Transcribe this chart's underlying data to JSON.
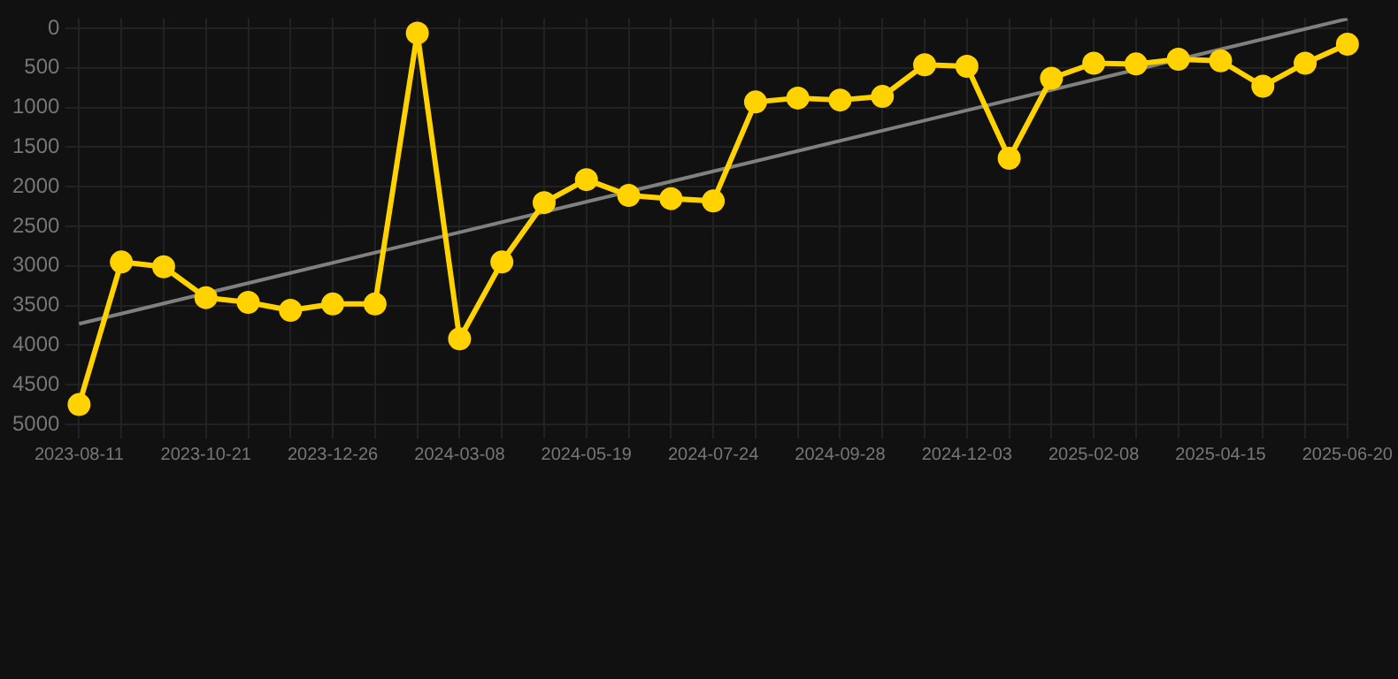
{
  "chart_data": {
    "type": "line",
    "categories": [
      "2023-08-11",
      null,
      null,
      "2023-10-21",
      null,
      null,
      "2023-12-26",
      null,
      null,
      "2024-03-08",
      null,
      null,
      "2024-05-19",
      null,
      null,
      "2024-07-24",
      null,
      null,
      "2024-09-28",
      null,
      null,
      "2024-12-03",
      null,
      null,
      "2025-02-08",
      null,
      null,
      "2025-04-15",
      null,
      null,
      "2025-06-20"
    ],
    "series": [
      {
        "color": "#ffd200",
        "marker": "circle",
        "values": [
          4750,
          2950,
          3010,
          3400,
          3460,
          3560,
          3480,
          3480,
          60,
          3920,
          2950,
          2200,
          1910,
          2110,
          2150,
          2180,
          930,
          880,
          905,
          860,
          460,
          480,
          1640,
          630,
          440,
          450,
          390,
          410,
          730,
          440,
          200
        ]
      },
      {
        "type": "line",
        "color": "#808080",
        "marker": "none",
        "values": [
          3730,
          null,
          null,
          null,
          null,
          null,
          null,
          null,
          null,
          null,
          null,
          null,
          null,
          null,
          null,
          null,
          null,
          null,
          null,
          null,
          null,
          null,
          null,
          null,
          null,
          null,
          null,
          null,
          null,
          null,
          -120
        ]
      }
    ],
    "ylim": [
      5000,
      -130
    ],
    "yticks": [
      0,
      500,
      1000,
      1500,
      2000,
      2500,
      3000,
      3500,
      4000,
      4500,
      5000
    ],
    "grid": true,
    "legend": false
  }
}
